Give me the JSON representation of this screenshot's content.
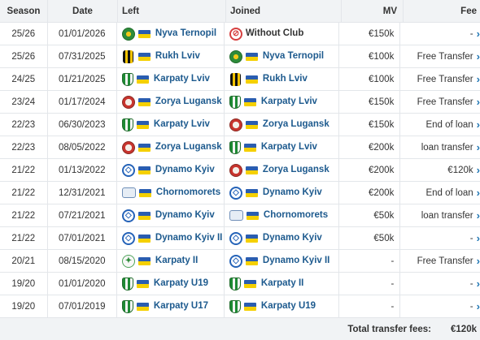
{
  "headers": {
    "season": "Season",
    "date": "Date",
    "left": "Left",
    "joined": "Joined",
    "mv": "MV",
    "fee": "Fee"
  },
  "colors": {
    "link": "#1d5a8e",
    "header_bg": "#f1f3f5",
    "border": "#e3e6ea",
    "arrow": "#1d75b3"
  },
  "transfers": [
    {
      "season": "25/26",
      "date": "01/01/2026",
      "left": "Nyva Ternopil",
      "left_icon": "nyva-crest-icon",
      "joined": "Without Club",
      "joined_icon": "without-club-icon",
      "mv": "€150k",
      "fee": "-"
    },
    {
      "season": "25/26",
      "date": "07/31/2025",
      "left": "Rukh Lviv",
      "left_icon": "rukh-crest-icon",
      "joined": "Nyva Ternopil",
      "joined_icon": "nyva-crest-icon",
      "mv": "€100k",
      "fee": "Free Transfer"
    },
    {
      "season": "24/25",
      "date": "01/21/2025",
      "left": "Karpaty Lviv",
      "left_icon": "karpaty-crest-icon",
      "joined": "Rukh Lviv",
      "joined_icon": "rukh-crest-icon",
      "mv": "€100k",
      "fee": "Free Transfer"
    },
    {
      "season": "23/24",
      "date": "01/17/2024",
      "left": "Zorya Lugansk",
      "left_icon": "zorya-crest-icon",
      "joined": "Karpaty Lviv",
      "joined_icon": "karpaty-crest-icon",
      "mv": "€150k",
      "fee": "Free Transfer"
    },
    {
      "season": "22/23",
      "date": "06/30/2023",
      "left": "Karpaty Lviv",
      "left_icon": "karpaty-crest-icon",
      "joined": "Zorya Lugansk",
      "joined_icon": "zorya-crest-icon",
      "mv": "€150k",
      "fee": "End of loan"
    },
    {
      "season": "22/23",
      "date": "08/05/2022",
      "left": "Zorya Lugansk",
      "left_icon": "zorya-crest-icon",
      "joined": "Karpaty Lviv",
      "joined_icon": "karpaty-crest-icon",
      "mv": "€200k",
      "fee": "loan transfer"
    },
    {
      "season": "21/22",
      "date": "01/13/2022",
      "left": "Dynamo Kyiv",
      "left_icon": "dynamo-crest-icon",
      "joined": "Zorya Lugansk",
      "joined_icon": "zorya-crest-icon",
      "mv": "€200k",
      "fee": "€120k"
    },
    {
      "season": "21/22",
      "date": "12/31/2021",
      "left": "Chornomorets",
      "left_icon": "chornomorets-crest-icon",
      "joined": "Dynamo Kyiv",
      "joined_icon": "dynamo-crest-icon",
      "mv": "€200k",
      "fee": "End of loan"
    },
    {
      "season": "21/22",
      "date": "07/21/2021",
      "left": "Dynamo Kyiv",
      "left_icon": "dynamo-crest-icon",
      "joined": "Chornomorets",
      "joined_icon": "chornomorets-crest-icon",
      "mv": "€50k",
      "fee": "loan transfer"
    },
    {
      "season": "21/22",
      "date": "07/01/2021",
      "left": "Dynamo Kyiv II",
      "left_icon": "dynamo-crest-icon",
      "joined": "Dynamo Kyiv",
      "joined_icon": "dynamo-crest-icon",
      "mv": "€50k",
      "fee": "-"
    },
    {
      "season": "20/21",
      "date": "08/15/2020",
      "left": "Karpaty II",
      "left_icon": "karpaty-ii-crest-icon",
      "joined": "Dynamo Kyiv II",
      "joined_icon": "dynamo-crest-icon",
      "mv": "-",
      "fee": "Free Transfer"
    },
    {
      "season": "19/20",
      "date": "01/01/2020",
      "left": "Karpaty U19",
      "left_icon": "karpaty-crest-icon",
      "joined": "Karpaty II",
      "joined_icon": "karpaty-crest-icon",
      "mv": "-",
      "fee": "-"
    },
    {
      "season": "19/20",
      "date": "07/01/2019",
      "left": "Karpaty U17",
      "left_icon": "karpaty-crest-icon",
      "joined": "Karpaty U19",
      "joined_icon": "karpaty-crest-icon",
      "mv": "-",
      "fee": "-"
    }
  ],
  "footer": {
    "label": "Total transfer fees:",
    "value": "€120k"
  }
}
